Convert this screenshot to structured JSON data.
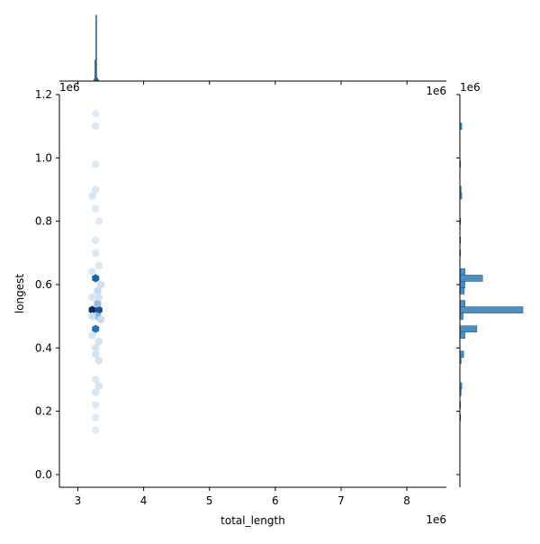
{
  "chart_data": {
    "type": "hexbin-jointplot",
    "xlabel": "total_length",
    "ylabel": "longest",
    "x_scale_label": "1e6",
    "y_scale_label": "1e6",
    "top_marginal_scale_label": "1e6",
    "right_marginal_scale_label": "1e6",
    "xlim": [
      2.72,
      8.6
    ],
    "ylim": [
      -0.04,
      1.2
    ],
    "x_ticks": [
      3,
      4,
      5,
      6,
      7,
      8
    ],
    "x_tick_labels": [
      "3",
      "4",
      "5",
      "6",
      "7",
      "8"
    ],
    "y_ticks": [
      0.0,
      0.2,
      0.4,
      0.6,
      0.8,
      1.0,
      1.2
    ],
    "y_tick_labels": [
      "0.0",
      "0.2",
      "0.4",
      "0.6",
      "0.8",
      "1.0",
      "1.2"
    ],
    "colors": {
      "hex_dark": "#08306b",
      "hex_mid": "#2171b5",
      "hex_light": "#c6dbef",
      "hex_faint": "#eef5fb",
      "hist_fill": "#4c8fc0",
      "hist_edge": "#1f4e79"
    },
    "hexbins": [
      {
        "x": 3.22,
        "y": 0.52,
        "count": 100
      },
      {
        "x": 3.32,
        "y": 0.52,
        "count": 75
      },
      {
        "x": 3.27,
        "y": 0.62,
        "count": 65
      },
      {
        "x": 3.27,
        "y": 0.46,
        "count": 55
      },
      {
        "x": 3.3,
        "y": 0.5,
        "count": 25
      },
      {
        "x": 3.3,
        "y": 0.54,
        "count": 22
      },
      {
        "x": 3.3,
        "y": 0.58,
        "count": 12
      },
      {
        "x": 3.35,
        "y": 0.6,
        "count": 8
      },
      {
        "x": 3.35,
        "y": 0.49,
        "count": 10
      },
      {
        "x": 3.22,
        "y": 0.5,
        "count": 10
      },
      {
        "x": 3.27,
        "y": 0.4,
        "count": 5
      },
      {
        "x": 3.32,
        "y": 0.36,
        "count": 6
      },
      {
        "x": 3.27,
        "y": 0.38,
        "count": 6
      },
      {
        "x": 3.32,
        "y": 0.28,
        "count": 5
      },
      {
        "x": 3.27,
        "y": 0.26,
        "count": 4
      },
      {
        "x": 3.22,
        "y": 0.64,
        "count": 4
      },
      {
        "x": 3.32,
        "y": 0.66,
        "count": 3
      },
      {
        "x": 3.27,
        "y": 0.7,
        "count": 3
      },
      {
        "x": 3.27,
        "y": 0.74,
        "count": 2
      },
      {
        "x": 3.22,
        "y": 0.88,
        "count": 5
      },
      {
        "x": 3.27,
        "y": 0.9,
        "count": 4
      },
      {
        "x": 3.27,
        "y": 0.98,
        "count": 3
      },
      {
        "x": 3.27,
        "y": 1.1,
        "count": 3
      },
      {
        "x": 3.27,
        "y": 1.14,
        "count": 2
      },
      {
        "x": 3.27,
        "y": 0.84,
        "count": 2
      },
      {
        "x": 3.32,
        "y": 0.8,
        "count": 2
      },
      {
        "x": 3.27,
        "y": 0.3,
        "count": 3
      },
      {
        "x": 3.27,
        "y": 0.22,
        "count": 3
      },
      {
        "x": 3.27,
        "y": 0.18,
        "count": 2
      },
      {
        "x": 3.27,
        "y": 0.14,
        "count": 2
      },
      {
        "x": 3.32,
        "y": 0.42,
        "count": 6
      },
      {
        "x": 3.22,
        "y": 0.44,
        "count": 4
      },
      {
        "x": 3.22,
        "y": 0.56,
        "count": 5
      },
      {
        "x": 3.32,
        "y": 0.56,
        "count": 7
      }
    ],
    "top_hist": {
      "bin_width": 0.015,
      "bins": [
        {
          "x": 3.25,
          "count": 0.03
        },
        {
          "x": 3.265,
          "count": 0.32
        },
        {
          "x": 3.28,
          "count": 1.0
        },
        {
          "x": 3.295,
          "count": 0.05
        },
        {
          "x": 3.31,
          "count": 0.02
        }
      ]
    },
    "right_hist": {
      "bin_width": 0.02,
      "bins": [
        {
          "y": 1.1,
          "count": 0.03
        },
        {
          "y": 0.98,
          "count": 0.01
        },
        {
          "y": 0.9,
          "count": 0.02
        },
        {
          "y": 0.88,
          "count": 0.03
        },
        {
          "y": 0.8,
          "count": 0.01
        },
        {
          "y": 0.74,
          "count": 0.01
        },
        {
          "y": 0.7,
          "count": 0.01
        },
        {
          "y": 0.64,
          "count": 0.08
        },
        {
          "y": 0.62,
          "count": 0.36
        },
        {
          "y": 0.6,
          "count": 0.08
        },
        {
          "y": 0.58,
          "count": 0.07
        },
        {
          "y": 0.54,
          "count": 0.08
        },
        {
          "y": 0.52,
          "count": 1.0
        },
        {
          "y": 0.5,
          "count": 0.05
        },
        {
          "y": 0.46,
          "count": 0.27
        },
        {
          "y": 0.44,
          "count": 0.08
        },
        {
          "y": 0.38,
          "count": 0.06
        },
        {
          "y": 0.36,
          "count": 0.02
        },
        {
          "y": 0.28,
          "count": 0.03
        },
        {
          "y": 0.26,
          "count": 0.02
        },
        {
          "y": 0.22,
          "count": 0.01
        },
        {
          "y": 0.18,
          "count": 0.01
        }
      ]
    }
  }
}
